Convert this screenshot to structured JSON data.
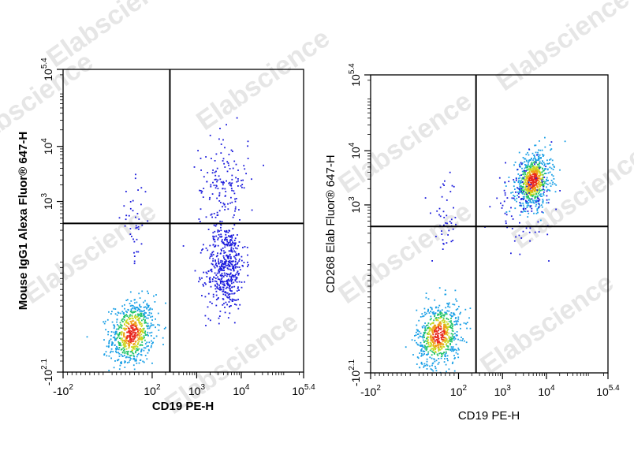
{
  "watermark": "Elabscience",
  "colors": {
    "axis": "#000000",
    "gate": "#000000",
    "watermark": "#e6e6e6"
  },
  "chart_data": [
    {
      "type": "scatter",
      "subtype": "flow-cytometry-density-dot-plot",
      "scale": "biexponential",
      "xlabel": "CD19 PE-H",
      "ylabel": "Mouse IgG1 Alexa Fluor® 647-H",
      "label_style": "bold",
      "xlim": [
        -100,
        251189
      ],
      "ylim": [
        -126,
        251189
      ],
      "x_ticks": [
        {
          "base": "-10",
          "exp": "2",
          "value": -100
        },
        {
          "base": "10",
          "exp": "2",
          "value": 100
        },
        {
          "base": "10",
          "exp": "3",
          "value": 1000
        },
        {
          "base": "10",
          "exp": "4",
          "value": 10000
        },
        {
          "base": "10",
          "exp": "5.4",
          "value": 251189
        }
      ],
      "y_ticks": [
        {
          "base": "-10",
          "exp": "2.1",
          "value": -126
        },
        {
          "base": "10",
          "exp": "3",
          "value": 1000
        },
        {
          "base": "10",
          "exp": "4",
          "value": 10000
        },
        {
          "base": "10",
          "exp": "5.4",
          "value": 251189
        }
      ],
      "gates": {
        "x": 250,
        "y": 400
      },
      "populations": [
        {
          "name": "",
          "x_center": 55,
          "y_center": -40,
          "x_spread_log": 0.25,
          "y_spread_log": 0.3,
          "count": 700,
          "density_colored": true
        },
        {
          "name": "",
          "x_center": 4500,
          "y_center": 80,
          "x_spread_log": 0.22,
          "y_spread_log": 0.4,
          "count": 500,
          "density_colored": false
        },
        {
          "name": "",
          "x_center": 4000,
          "y_center": 2000,
          "x_spread_log": 0.28,
          "y_spread_log": 0.45,
          "count": 160,
          "density_colored": false
        },
        {
          "name": "",
          "x_center": 60,
          "y_center": 400,
          "x_spread_log": 0.15,
          "y_spread_log": 0.35,
          "count": 40,
          "density_colored": false
        }
      ]
    },
    {
      "type": "scatter",
      "subtype": "flow-cytometry-density-dot-plot",
      "scale": "biexponential",
      "xlabel": "CD19 PE-H",
      "ylabel": "CD268 Elab Fluor® 647-H",
      "label_style": "normal",
      "xlim": [
        -100,
        251189
      ],
      "ylim": [
        -126,
        251189
      ],
      "x_ticks": [
        {
          "base": "-10",
          "exp": "2",
          "value": -100
        },
        {
          "base": "10",
          "exp": "2",
          "value": 100
        },
        {
          "base": "10",
          "exp": "3",
          "value": 1000
        },
        {
          "base": "10",
          "exp": "4",
          "value": 10000
        },
        {
          "base": "10",
          "exp": "5.4",
          "value": 251189
        }
      ],
      "y_ticks": [
        {
          "base": "-10",
          "exp": "2.1",
          "value": -126
        },
        {
          "base": "10",
          "exp": "3",
          "value": 1000
        },
        {
          "base": "10",
          "exp": "4",
          "value": 10000
        },
        {
          "base": "10",
          "exp": "5.4",
          "value": 251189
        }
      ],
      "gates": {
        "x": 250,
        "y": 400
      },
      "populations": [
        {
          "name": "",
          "x_center": 55,
          "y_center": -40,
          "x_spread_log": 0.25,
          "y_spread_log": 0.3,
          "count": 700,
          "density_colored": true
        },
        {
          "name": "",
          "x_center": 5000,
          "y_center": 2800,
          "x_spread_log": 0.2,
          "y_spread_log": 0.25,
          "count": 700,
          "density_colored": true
        },
        {
          "name": "",
          "x_center": 3000,
          "y_center": 1200,
          "x_spread_log": 0.35,
          "y_spread_log": 0.35,
          "count": 120,
          "density_colored": false
        },
        {
          "name": "",
          "x_center": 70,
          "y_center": 500,
          "x_spread_log": 0.15,
          "y_spread_log": 0.35,
          "count": 45,
          "density_colored": false
        }
      ]
    }
  ]
}
